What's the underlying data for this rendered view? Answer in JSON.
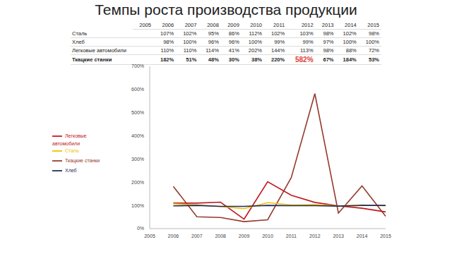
{
  "title": "Темпы роста производства продукции",
  "table": {
    "columns": [
      "2005",
      "2006",
      "2007",
      "2008",
      "2009",
      "2010",
      "2011",
      "2012",
      "2013",
      "2014",
      "2015"
    ],
    "rows": [
      {
        "label": "Сталь",
        "bold": false,
        "cells": [
          null,
          "107%",
          "102%",
          "95%",
          "86%",
          "112%",
          "102%",
          "103%",
          "98%",
          "102%",
          "98%"
        ]
      },
      {
        "label": "Хлеб",
        "bold": false,
        "cells": [
          null,
          "98%",
          "100%",
          "96%",
          "96%",
          "100%",
          "99%",
          "99%",
          "97%",
          "100%",
          "100%"
        ]
      },
      {
        "label": "Легковые автомобили",
        "bold": false,
        "cells": [
          null,
          "110%",
          "110%",
          "114%",
          "41%",
          "202%",
          "144%",
          "113%",
          "98%",
          "88%",
          "72%"
        ]
      },
      {
        "label": "Ткацкие станки",
        "bold": true,
        "cells": [
          null,
          "182%",
          "51%",
          "48%",
          "30%",
          "38%",
          "220%",
          {
            "text": "582%",
            "color": "#e0403a"
          },
          "67%",
          "184%",
          "53%"
        ]
      }
    ]
  },
  "chart_data": {
    "type": "line",
    "categories": [
      "2005",
      "2006",
      "2007",
      "2008",
      "2009",
      "2010",
      "2011",
      "2012",
      "2013",
      "2014",
      "2015"
    ],
    "series": [
      {
        "name": "Ткацкие станки",
        "color": "#953a2e",
        "values": [
          null,
          182,
          51,
          48,
          30,
          38,
          220,
          582,
          67,
          184,
          53
        ]
      },
      {
        "name": "Легковые автомобили",
        "color": "#c0181c",
        "values": [
          null,
          110,
          110,
          114,
          41,
          202,
          144,
          113,
          98,
          88,
          72
        ]
      },
      {
        "name": "Сталь",
        "color": "#f0c000",
        "values": [
          null,
          107,
          102,
          95,
          86,
          112,
          102,
          103,
          98,
          102,
          98
        ]
      },
      {
        "name": "Хлеб",
        "color": "#1f2a5c",
        "values": [
          null,
          98,
          100,
          96,
          96,
          100,
          99,
          99,
          97,
          100,
          100
        ]
      }
    ],
    "ylim": [
      0,
      700
    ],
    "yticks": [
      {
        "value": 0,
        "label": "0%"
      },
      {
        "value": 100,
        "label": "100%"
      },
      {
        "value": 200,
        "label": "200%"
      },
      {
        "value": 300,
        "label": "300%"
      },
      {
        "value": 400,
        "label": "400%"
      },
      {
        "value": 500,
        "label": "500%"
      },
      {
        "value": 600,
        "label": "600%"
      },
      {
        "value": 700,
        "label": "700%"
      }
    ],
    "legend": "left",
    "grid": false
  }
}
